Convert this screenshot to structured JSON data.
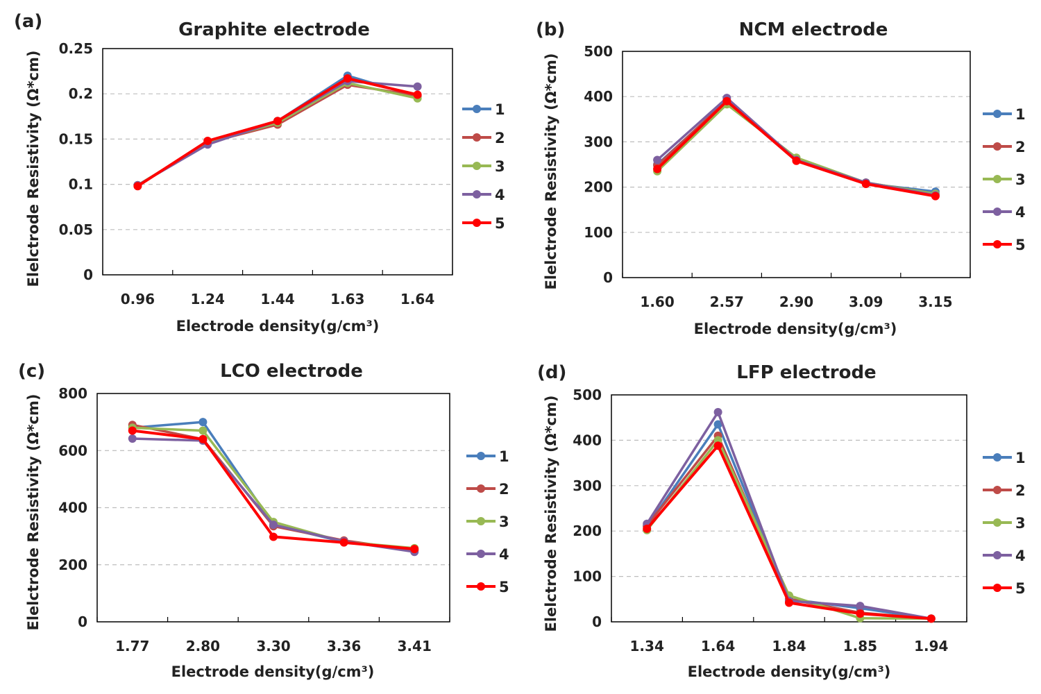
{
  "panels": [
    {
      "id": "a",
      "label": "(a)"
    },
    {
      "id": "b",
      "label": "(b)"
    },
    {
      "id": "c",
      "label": "(c)"
    },
    {
      "id": "d",
      "label": "(d)"
    }
  ],
  "series_colors": {
    "1": "#4a7ebb",
    "2": "#be4b48",
    "3": "#98b954",
    "4": "#7d60a0",
    "5": "#ff0000"
  },
  "chart_data": [
    {
      "type": "line",
      "title": "Graphite electrode",
      "xlabel": "Electrode density(g/cm³)",
      "ylabel": "Elelctrode Resistivity (Ω*cm)",
      "categories": [
        "0.96",
        "1.24",
        "1.44",
        "1.63",
        "1.64"
      ],
      "ylim": [
        0,
        0.25
      ],
      "yticks": [
        "0",
        "0.05",
        "0.1",
        "0.15",
        "0.2",
        "0.25"
      ],
      "grid": true,
      "legend": "right",
      "series": [
        {
          "name": "1",
          "values": [
            0.099,
            0.145,
            0.17,
            0.22,
            0.197
          ]
        },
        {
          "name": "2",
          "values": [
            0.099,
            0.146,
            0.166,
            0.21,
            0.198
          ]
        },
        {
          "name": "3",
          "values": [
            0.099,
            0.146,
            0.168,
            0.212,
            0.195
          ]
        },
        {
          "name": "4",
          "values": [
            0.099,
            0.144,
            0.17,
            0.214,
            0.208
          ]
        },
        {
          "name": "5",
          "values": [
            0.098,
            0.148,
            0.17,
            0.217,
            0.199
          ]
        }
      ]
    },
    {
      "type": "line",
      "title": "NCM electrode",
      "xlabel": "Electrode density(g/cm³)",
      "ylabel": "Elelctrode Resistivity (Ω*cm)",
      "categories": [
        "1.60",
        "2.57",
        "2.90",
        "3.09",
        "3.15"
      ],
      "ylim": [
        0,
        500
      ],
      "yticks": [
        "0",
        "100",
        "200",
        "300",
        "400",
        "500"
      ],
      "grid": true,
      "legend": "right",
      "series": [
        {
          "name": "1",
          "values": [
            250,
            390,
            262,
            208,
            190
          ]
        },
        {
          "name": "2",
          "values": [
            248,
            392,
            260,
            210,
            185
          ]
        },
        {
          "name": "3",
          "values": [
            235,
            383,
            265,
            210,
            185
          ]
        },
        {
          "name": "4",
          "values": [
            260,
            397,
            260,
            210,
            182
          ]
        },
        {
          "name": "5",
          "values": [
            240,
            390,
            258,
            207,
            180
          ]
        }
      ]
    },
    {
      "type": "line",
      "title": "LCO electrode",
      "xlabel": "Electrode density(g/cm³)",
      "ylabel": "Elelctrode Resistivity (Ω*cm)",
      "categories": [
        "1.77",
        "2.80",
        "3.30",
        "3.36",
        "3.41"
      ],
      "ylim": [
        0,
        800
      ],
      "yticks": [
        "0",
        "200",
        "400",
        "600",
        "800"
      ],
      "grid": true,
      "legend": "right",
      "series": [
        {
          "name": "1",
          "values": [
            680,
            700,
            340,
            280,
            252
          ]
        },
        {
          "name": "2",
          "values": [
            690,
            640,
            335,
            285,
            250
          ]
        },
        {
          "name": "3",
          "values": [
            680,
            670,
            350,
            280,
            258
          ]
        },
        {
          "name": "4",
          "values": [
            642,
            635,
            340,
            282,
            245
          ]
        },
        {
          "name": "5",
          "values": [
            670,
            640,
            298,
            278,
            255
          ]
        }
      ]
    },
    {
      "type": "line",
      "title": "LFP electrode",
      "xlabel": "Electrode density(g/cm³)",
      "ylabel": "Elelctrode Resistivity (Ω*cm)",
      "categories": [
        "1.34",
        "1.64",
        "1.84",
        "1.85",
        "1.94"
      ],
      "ylim": [
        0,
        500
      ],
      "yticks": [
        "0",
        "100",
        "200",
        "300",
        "400",
        "500"
      ],
      "grid": true,
      "legend": "right",
      "series": [
        {
          "name": "1",
          "values": [
            210,
            435,
            50,
            30,
            7
          ]
        },
        {
          "name": "2",
          "values": [
            212,
            410,
            50,
            20,
            7
          ]
        },
        {
          "name": "3",
          "values": [
            202,
            400,
            58,
            8,
            7
          ]
        },
        {
          "name": "4",
          "values": [
            216,
            462,
            46,
            35,
            7
          ]
        },
        {
          "name": "5",
          "values": [
            205,
            388,
            42,
            18,
            7
          ]
        }
      ]
    }
  ]
}
